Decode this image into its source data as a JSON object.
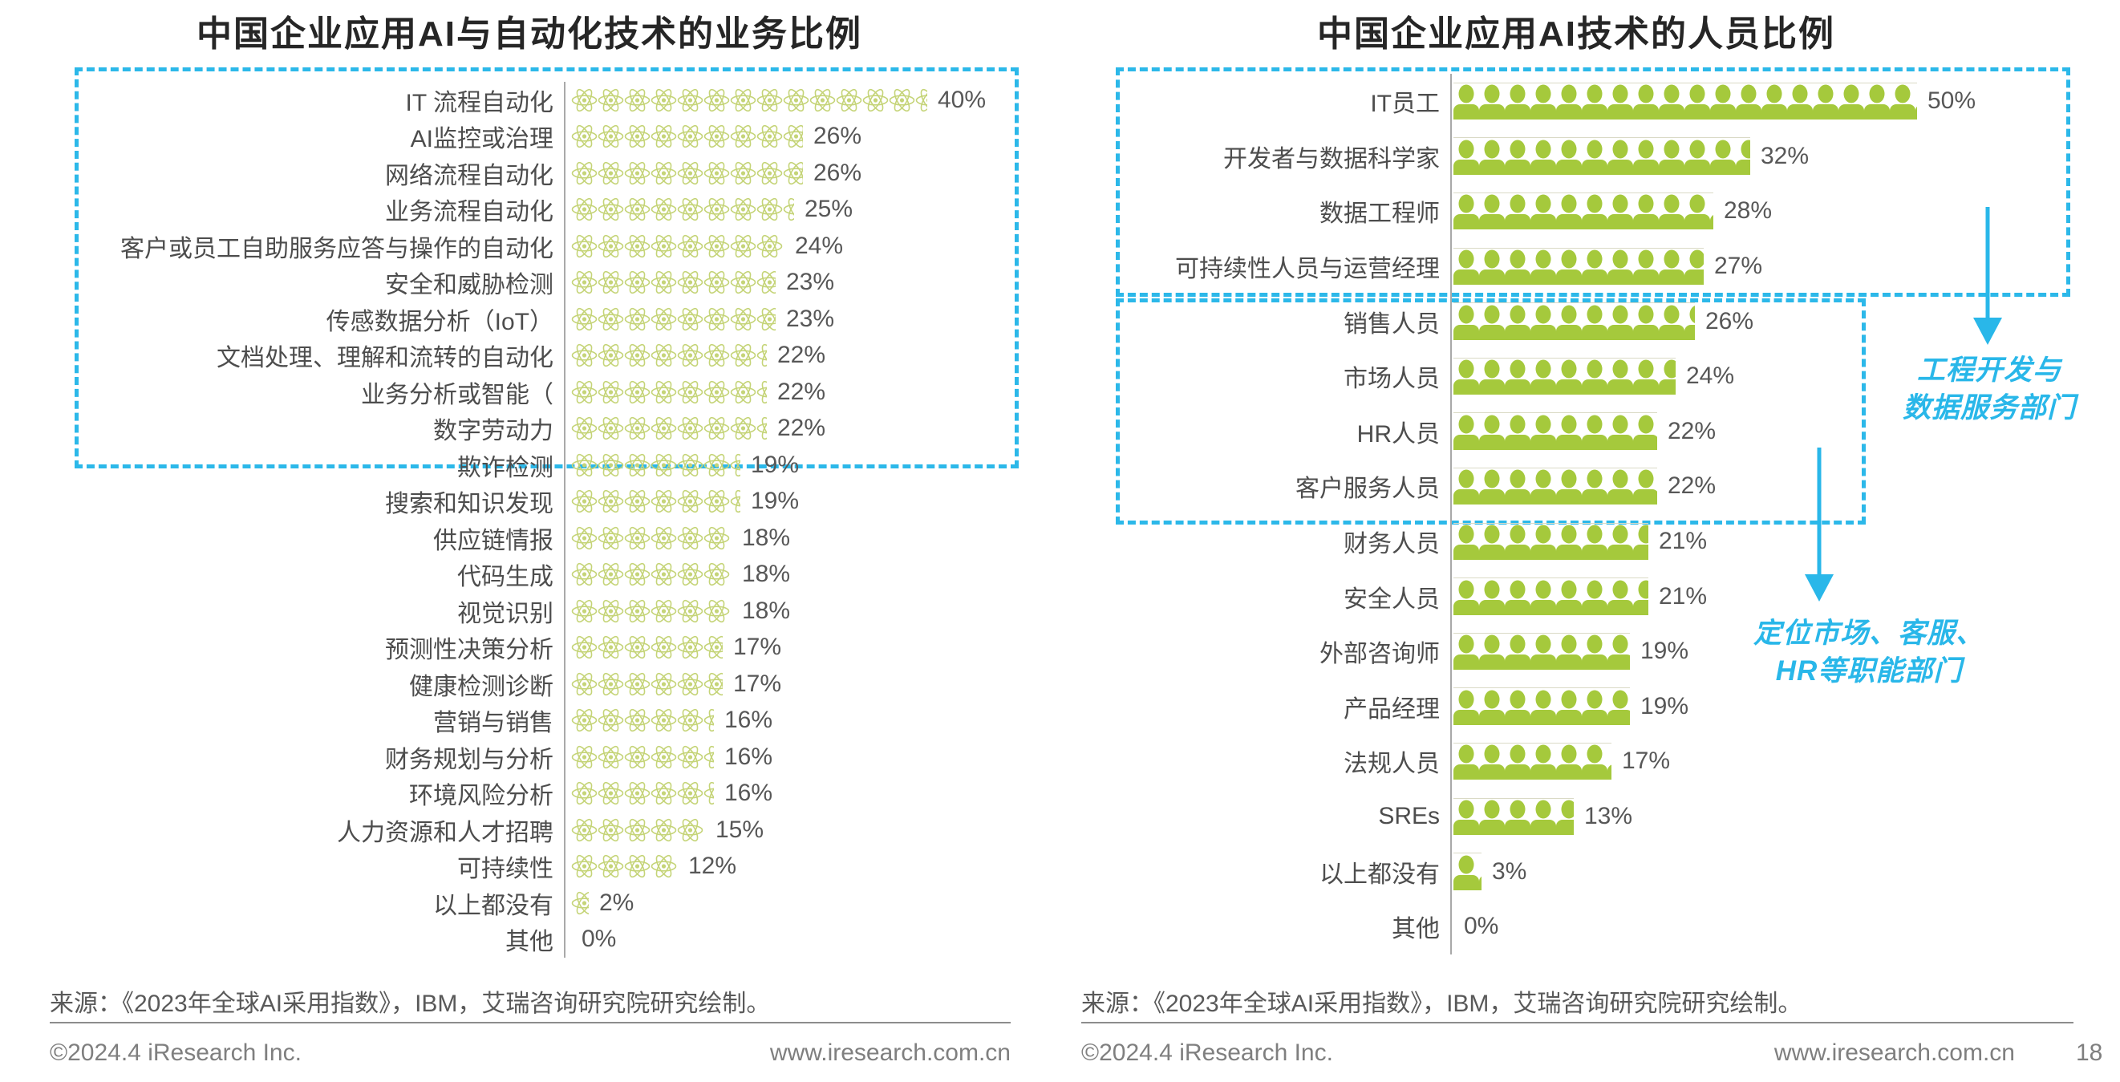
{
  "colors": {
    "accent_cyan": "#29b7e9",
    "bar_green": "#a5c93c",
    "atom_icon_green": "#c5d478",
    "axis_gray": "#a9a9a9",
    "label_gray": "#4d4d4d",
    "value_gray": "#575757",
    "title_dark": "#262626",
    "footer_gray": "#7f7f7f"
  },
  "page": {
    "left_footer": {
      "source": "来源：《2023年全球AI采用指数》，IBM，艾瑞咨询研究院研究绘制。",
      "copyright": "©2024.4 iResearch Inc.",
      "website": "www.iresearch.com.cn"
    },
    "right_footer": {
      "source": "来源：《2023年全球AI采用指数》，IBM，艾瑞咨询研究院研究绘制。",
      "copyright": "©2024.4 iResearch Inc.",
      "website": "www.iresearch.com.cn",
      "page_number": "18"
    }
  },
  "chart_data": [
    {
      "type": "bar",
      "orientation": "horizontal",
      "pictogram_icon": "atom-icon",
      "title": "中国企业应用AI与自动化技术的业务比例",
      "unit": "%",
      "xlim": [
        0,
        44
      ],
      "grid": false,
      "legend": "none",
      "categories": [
        "IT 流程自动化",
        "AI监控或治理",
        "网络流程自动化",
        "业务流程自动化",
        "客户或员工自助服务应答与操作的自动化",
        "安全和威胁检测",
        "传感数据分析（IoT）",
        "文档处理、理解和流转的自动化",
        "业务分析或智能（",
        "数字劳动力",
        "欺诈检测",
        "搜索和知识发现",
        "供应链情报",
        "代码生成",
        "视觉识别",
        "预测性决策分析",
        "健康检测诊断",
        "营销与销售",
        "财务规划与分析",
        "环境风险分析",
        "人力资源和人才招聘",
        "可持续性",
        "以上都没有",
        "其他"
      ],
      "values": [
        40,
        26,
        26,
        25,
        24,
        23,
        23,
        22,
        22,
        22,
        19,
        19,
        18,
        18,
        18,
        17,
        17,
        16,
        16,
        16,
        15,
        12,
        2,
        0
      ],
      "highlight_box_rows": [
        1,
        10
      ]
    },
    {
      "type": "bar",
      "orientation": "horizontal",
      "pictogram_icon": "person-icon",
      "title": "中国企业应用AI技术的人员比例",
      "unit": "%",
      "xlim": [
        0,
        55
      ],
      "grid": false,
      "legend": "none",
      "categories": [
        "IT员工",
        "开发者与数据科学家",
        "数据工程师",
        "可持续性人员与运营经理",
        "销售人员",
        "市场人员",
        "HR人员",
        "客户服务人员",
        "财务人员",
        "安全人员",
        "外部咨询师",
        "产品经理",
        "法规人员",
        "SREs",
        "以上都没有",
        "其他"
      ],
      "values": [
        50,
        32,
        28,
        27,
        26,
        24,
        22,
        22,
        21,
        21,
        19,
        19,
        17,
        13,
        3,
        0
      ],
      "highlight_boxes": [
        {
          "rows": [
            1,
            4
          ]
        },
        {
          "rows": [
            5,
            8
          ]
        }
      ],
      "annotations": [
        {
          "lines": [
            "工程开发与",
            "数据服务部门"
          ]
        },
        {
          "lines": [
            "定位市场、客服、",
            "HR等职能部门"
          ]
        }
      ]
    }
  ]
}
